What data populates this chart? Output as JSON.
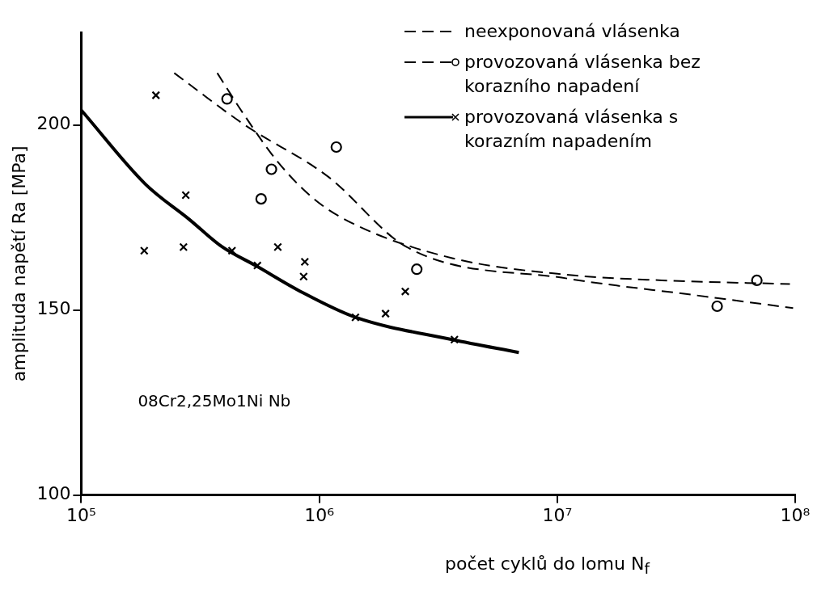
{
  "chart_data": {
    "type": "scatter",
    "xlabel": "počet cyklů do lomu  N$_{f}$",
    "ylabel": "amplituda napětí Ra [MPa]",
    "log": "x",
    "xlim": [
      100000,
      100000000
    ],
    "ylim": [
      100,
      225
    ],
    "xticks": [
      {
        "value": 100000,
        "label": "10⁵"
      },
      {
        "value": 1000000,
        "label": "10⁶"
      },
      {
        "value": 10000000,
        "label": "10⁷"
      },
      {
        "value": 100000000,
        "label": "10⁸"
      }
    ],
    "yticks": [
      100,
      150,
      200
    ],
    "grid": false,
    "legend": "top right",
    "annotations": [
      "08Cr2,25Mo1Ni Nb"
    ],
    "series": [
      {
        "name": "neexponovaná vlásenka",
        "type": "line",
        "color": "#000000",
        "line_style": "dashed",
        "marker": "none",
        "x": [
          373000,
          486000,
          670000,
          950000,
          1420000,
          3620000,
          11000000,
          27500000,
          95000000
        ],
        "values": [
          214,
          202.5,
          190,
          180,
          173,
          164,
          159.5,
          158,
          157
        ]
      },
      {
        "name": "provozovaná vlásenka bez korazního napadení",
        "type": "scatter",
        "color": "#000000",
        "marker": "circle",
        "x": [
          410000,
          630000,
          570000,
          1180000,
          2570000,
          47000000,
          69000000
        ],
        "values": [
          207,
          188,
          180,
          194,
          161,
          151,
          158
        ]
      },
      {
        "type": "line",
        "color": "#000000",
        "line_style": "dashed",
        "marker": "none",
        "x": [
          246000,
          486000,
          1090000,
          2330000,
          11000000,
          37800000,
          98000000
        ],
        "values": [
          214,
          200,
          186,
          167,
          158.5,
          154,
          150.5
        ]
      },
      {
        "name": "provozovaná vlásenka s korazním napadením",
        "type": "scatter",
        "color": "#000000",
        "marker": "cross",
        "x": [
          206000,
          275000,
          184000,
          269000,
          430000,
          550000,
          670000,
          870000,
          860000,
          1420000,
          1900000,
          2300000,
          3700000
        ],
        "values": [
          208,
          181,
          166,
          167,
          166,
          162,
          167,
          163,
          159,
          148,
          149,
          155,
          142
        ]
      },
      {
        "type": "line",
        "color": "#000000",
        "line_style": "solid",
        "marker": "none",
        "x": [
          100000,
          186000,
          284000,
          392000,
          540000,
          834000,
          1420000,
          3620000,
          6900000
        ],
        "values": [
          204,
          184,
          174.5,
          167,
          162,
          155,
          148,
          142,
          138.5
        ]
      }
    ]
  }
}
